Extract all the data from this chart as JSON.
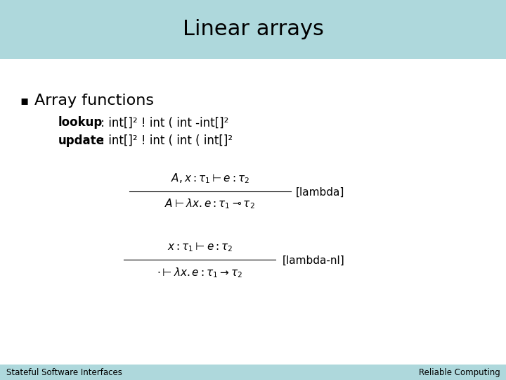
{
  "title": "Linear arrays",
  "title_bg_color": "#aed8dc",
  "slide_bg_color": "#ffffff",
  "footer_bg_color": "#aed8dc",
  "footer_left": "Stateful Software Interfaces",
  "footer_right": "Reliable Computing",
  "bullet_char": "▪",
  "bullet_text": "Array functions",
  "lookup_bold": "lookup",
  "lookup_rest": " : int[]² ! int ( int -int[]²",
  "update_bold": "update",
  "update_rest": " : int[]² ! int ( int ( int[]²",
  "formula1_label": "[lambda]",
  "formula2_label": "[lambda-nl]",
  "title_fontsize": 22,
  "bullet_fontsize": 16,
  "code_fontsize": 12,
  "formula_fontsize": 11,
  "footer_fontsize": 8.5,
  "title_bar_height": 0.155,
  "footer_bar_height": 0.04
}
